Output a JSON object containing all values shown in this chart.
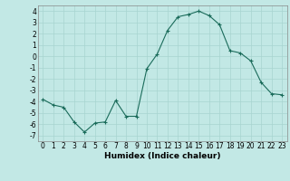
{
  "x": [
    0,
    1,
    2,
    3,
    4,
    5,
    6,
    7,
    8,
    9,
    10,
    11,
    12,
    13,
    14,
    15,
    16,
    17,
    18,
    19,
    20,
    21,
    22,
    23
  ],
  "y": [
    -3.8,
    -4.3,
    -4.5,
    -5.8,
    -6.7,
    -5.9,
    -5.8,
    -3.9,
    -5.3,
    -5.3,
    -1.1,
    0.2,
    2.3,
    3.5,
    3.7,
    4.0,
    3.6,
    2.8,
    0.5,
    0.3,
    -0.4,
    -2.3,
    -3.3,
    -3.4
  ],
  "line_color": "#1a6b5a",
  "marker": "+",
  "bg_color": "#c2e8e5",
  "grid_color": "#a8d4d0",
  "xlabel": "Humidex (Indice chaleur)",
  "ylim": [
    -7.5,
    4.5
  ],
  "xlim": [
    -0.5,
    23.5
  ],
  "yticks": [
    -7,
    -6,
    -5,
    -4,
    -3,
    -2,
    -1,
    0,
    1,
    2,
    3,
    4
  ],
  "xticks": [
    0,
    1,
    2,
    3,
    4,
    5,
    6,
    7,
    8,
    9,
    10,
    11,
    12,
    13,
    14,
    15,
    16,
    17,
    18,
    19,
    20,
    21,
    22,
    23
  ],
  "tick_fontsize": 5.5,
  "xlabel_fontsize": 6.5
}
